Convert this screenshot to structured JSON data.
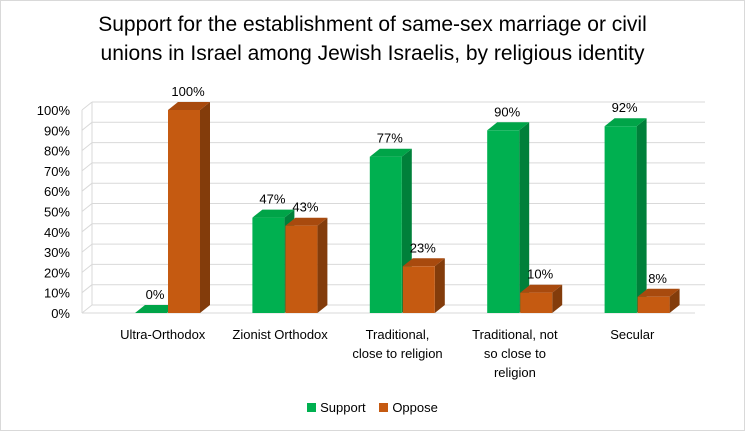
{
  "chart_data": {
    "type": "bar",
    "title": "Support for the establishment of same-sex marriage or civil\nunions in Israel among Jewish Israelis, by religious identity",
    "categories": [
      "Ultra-Orthodox",
      "Zionist Orthodox",
      "Traditional,\nclose to religion",
      "Traditional, not\nso close to\nreligion",
      "Secular"
    ],
    "series": [
      {
        "name": "Support",
        "values": [
          0,
          47,
          77,
          90,
          92
        ],
        "labels": [
          "0%",
          "47%",
          "77%",
          "90%",
          "92%"
        ],
        "color": "#00b050",
        "side_color": "#00803a",
        "top_color": "#00a448"
      },
      {
        "name": "Oppose",
        "values": [
          100,
          43,
          23,
          10,
          8
        ],
        "labels": [
          "100%",
          "43%",
          "23%",
          "10%",
          "8%"
        ],
        "color": "#c55a11",
        "side_color": "#833c0b",
        "top_color": "#a84a0e"
      }
    ],
    "ylim": [
      0,
      100
    ],
    "yticks": [
      0,
      10,
      20,
      30,
      40,
      50,
      60,
      70,
      80,
      90,
      100
    ],
    "ytick_labels": [
      "0%",
      "10%",
      "20%",
      "30%",
      "40%",
      "50%",
      "60%",
      "70%",
      "80%",
      "90%",
      "100%"
    ],
    "xlabel": "",
    "ylabel": "",
    "grid": true,
    "legend": "bottom",
    "style": "3d-clustered-column"
  }
}
